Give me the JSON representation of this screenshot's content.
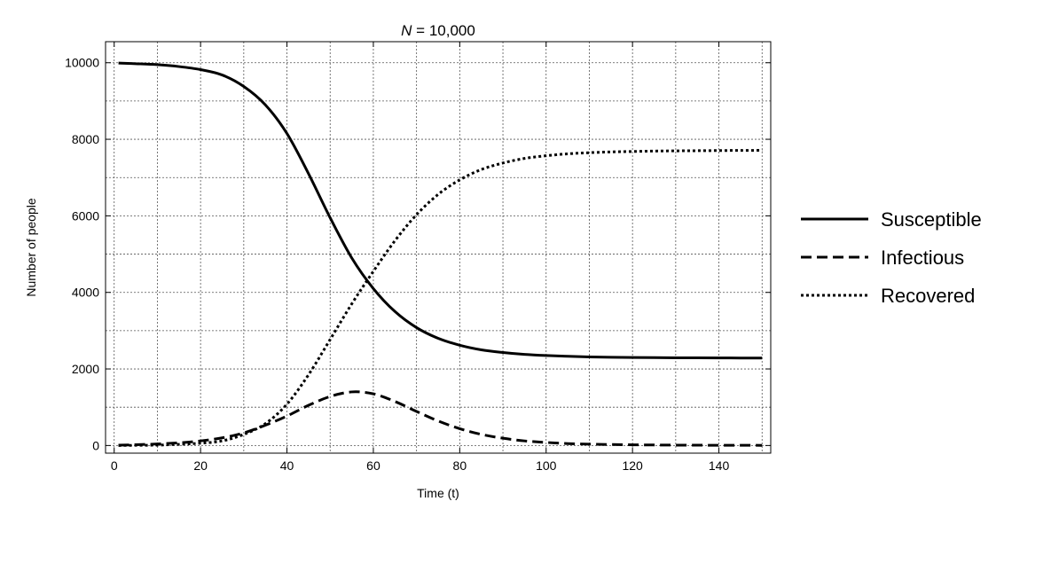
{
  "chart_data": {
    "type": "line",
    "title_var": "N",
    "title_rest": " = 10,000",
    "xlabel": "Time (t)",
    "ylabel": "Number of people",
    "xlim": [
      -2,
      152
    ],
    "ylim": [
      -200,
      10550
    ],
    "x_ticks": [
      0,
      20,
      40,
      60,
      80,
      100,
      120,
      140
    ],
    "y_ticks": [
      0,
      2000,
      4000,
      6000,
      8000,
      10000
    ],
    "grid": true,
    "legend_position": "right",
    "series": [
      {
        "name": "Susceptible",
        "style": "solid",
        "color": "#000000",
        "x": [
          1,
          5,
          10,
          15,
          20,
          25,
          30,
          35,
          40,
          45,
          50,
          55,
          60,
          65,
          70,
          75,
          80,
          85,
          90,
          95,
          100,
          105,
          110,
          115,
          120,
          125,
          130,
          135,
          140,
          145,
          150
        ],
        "y": [
          9990,
          9975,
          9950,
          9900,
          9820,
          9680,
          9380,
          8900,
          8150,
          7100,
          5950,
          4900,
          4100,
          3500,
          3080,
          2800,
          2620,
          2500,
          2430,
          2380,
          2350,
          2330,
          2315,
          2305,
          2300,
          2295,
          2292,
          2290,
          2288,
          2286,
          2285
        ]
      },
      {
        "name": "Infectious",
        "style": "dashed",
        "color": "#000000",
        "x": [
          1,
          5,
          10,
          15,
          20,
          25,
          30,
          35,
          40,
          45,
          50,
          55,
          60,
          65,
          70,
          75,
          80,
          85,
          90,
          95,
          100,
          105,
          110,
          115,
          120,
          125,
          130,
          135,
          140,
          145,
          150
        ],
        "y": [
          10,
          20,
          40,
          70,
          120,
          200,
          330,
          530,
          770,
          1050,
          1280,
          1400,
          1350,
          1150,
          890,
          640,
          440,
          290,
          190,
          120,
          80,
          50,
          35,
          25,
          18,
          13,
          10,
          8,
          6,
          5,
          4
        ]
      },
      {
        "name": "Recovered",
        "style": "dotted",
        "color": "#000000",
        "x": [
          1,
          5,
          10,
          15,
          20,
          25,
          30,
          35,
          40,
          45,
          50,
          55,
          60,
          65,
          70,
          75,
          80,
          85,
          90,
          95,
          100,
          105,
          110,
          115,
          120,
          125,
          130,
          135,
          140,
          145,
          150
        ],
        "y": [
          0,
          5,
          10,
          30,
          60,
          120,
          290,
          570,
          1080,
          1850,
          2770,
          3700,
          4550,
          5350,
          6030,
          6560,
          6940,
          7210,
          7380,
          7500,
          7570,
          7620,
          7650,
          7670,
          7682,
          7692,
          7698,
          7702,
          7706,
          7709,
          7711
        ]
      }
    ]
  }
}
